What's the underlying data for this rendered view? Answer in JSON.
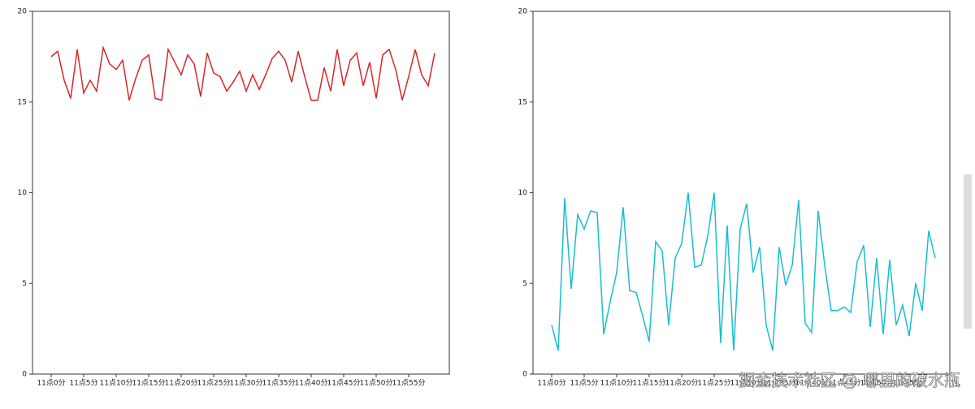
{
  "chart_data": [
    {
      "type": "line",
      "categories": [
        "11点0分",
        null,
        null,
        null,
        null,
        "11点5分",
        null,
        null,
        null,
        null,
        "11点10分",
        null,
        null,
        null,
        null,
        "11点15分",
        null,
        null,
        null,
        null,
        "11点20分",
        null,
        null,
        null,
        null,
        "11点25分",
        null,
        null,
        null,
        null,
        "11点30分",
        null,
        null,
        null,
        null,
        "11点35分",
        null,
        null,
        null,
        null,
        "11点40分",
        null,
        null,
        null,
        null,
        "11点45分",
        null,
        null,
        null,
        null,
        "11点50分",
        null,
        null,
        null,
        null,
        "11点55分",
        null,
        null,
        null,
        null
      ],
      "series": [
        {
          "color": "#d62728",
          "values": [
            17.5,
            17.8,
            16.2,
            15.2,
            17.9,
            15.5,
            16.2,
            15.6,
            18.0,
            17.1,
            16.8,
            17.3,
            15.1,
            16.3,
            17.3,
            17.6,
            15.2,
            15.1,
            17.9,
            17.2,
            16.5,
            17.6,
            17.1,
            15.3,
            17.7,
            16.6,
            16.4,
            15.6,
            16.1,
            16.7,
            15.6,
            16.5,
            15.7,
            16.5,
            17.4,
            17.8,
            17.3,
            16.1,
            17.8,
            16.4,
            15.1,
            15.1,
            16.9,
            15.6,
            17.9,
            15.9,
            17.3,
            17.7,
            15.9,
            17.2,
            15.2,
            17.6,
            17.9,
            16.8,
            15.1,
            16.4,
            17.9,
            16.5,
            15.9,
            17.7
          ]
        }
      ],
      "ylim": [
        0,
        20
      ],
      "yticks": [
        0,
        5,
        10,
        15,
        20
      ]
    },
    {
      "type": "line",
      "categories": [
        "11点0分",
        null,
        null,
        null,
        null,
        "11点5分",
        null,
        null,
        null,
        null,
        "11点10分",
        null,
        null,
        null,
        null,
        "11点15分",
        null,
        null,
        null,
        null,
        "11点20分",
        null,
        null,
        null,
        null,
        "11点25分",
        null,
        null,
        null,
        null,
        "11点30分",
        null,
        null,
        null,
        null,
        "11点35分",
        null,
        null,
        null,
        null,
        "11点40分",
        null,
        null,
        null,
        null,
        "11点45分",
        null,
        null,
        null,
        null,
        "11点50分",
        null,
        null,
        null,
        null,
        "11点55分",
        null,
        null,
        null,
        null
      ],
      "series": [
        {
          "color": "#17becf",
          "values": [
            2.7,
            1.3,
            9.7,
            4.7,
            8.8,
            8.0,
            9.0,
            8.9,
            2.2,
            4.0,
            5.6,
            9.2,
            4.6,
            4.5,
            3.2,
            1.8,
            7.3,
            6.8,
            2.7,
            6.4,
            7.2,
            10.0,
            5.9,
            6.0,
            7.6,
            10.0,
            1.7,
            8.2,
            1.3,
            8.0,
            9.4,
            5.6,
            7.0,
            2.7,
            1.3,
            7.0,
            4.9,
            6.0,
            9.6,
            2.8,
            2.3,
            9.0,
            6.0,
            3.5,
            3.5,
            3.7,
            3.4,
            6.2,
            7.1,
            2.6,
            6.4,
            2.2,
            6.3,
            2.7,
            3.8,
            2.1,
            5.0,
            3.5,
            7.9,
            6.4
          ]
        }
      ],
      "ylim": [
        0,
        20
      ],
      "yticks": [
        0,
        5,
        10,
        15,
        20
      ]
    }
  ],
  "watermark": "掘金技术社区 @ 哪里的破水瓶"
}
